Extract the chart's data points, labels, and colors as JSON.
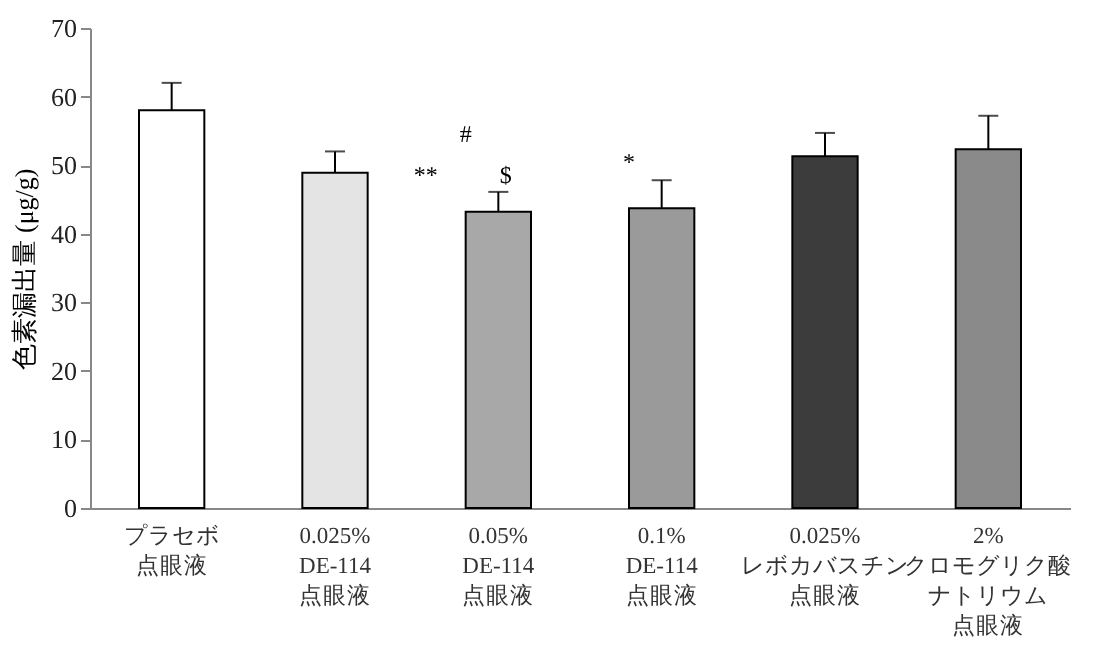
{
  "chart_data": {
    "type": "bar",
    "ylabel": "色素漏出量 (μg/g)",
    "categories": [
      "プラセボ点眼液",
      "0.025% DE-114 点眼液",
      "0.05% DE-114 点眼液",
      "0.1% DE-114 点眼液",
      "0.025% レボカバスチン点眼液",
      "2% クロモグリク酸ナトリウム点眼液"
    ],
    "values": [
      58,
      48.9,
      43.2,
      43.7,
      51.3,
      52.3
    ],
    "colors": [
      "#ffffff",
      "#e4e4e4",
      "#a8a8a8",
      "#9a9a9a",
      "#3c3c3c",
      "#8a8a8a"
    ],
    "errors": [
      [
        58,
        62
      ],
      [
        48.9,
        52
      ],
      [
        43.2,
        46.1
      ],
      [
        43.7,
        47.8
      ],
      [
        51.3,
        54.7
      ],
      [
        52.3,
        57.2
      ]
    ],
    "ylim": [
      0,
      70
    ],
    "yticks": [
      0,
      10,
      20,
      30,
      40,
      50,
      60,
      70
    ],
    "annotations": [
      "**",
      "#",
      "$",
      "*"
    ]
  }
}
